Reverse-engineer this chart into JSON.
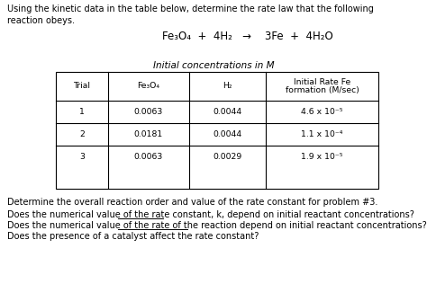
{
  "title_line1": "Using the kinetic data in the table below, determine the rate law that the following",
  "title_line2": "reaction obeys.",
  "equation": "Fe₃O₄  +  4H₂   →    3Fe  +  4H₂O",
  "table_title": "Initial concentrations in M",
  "col_headers_row1": [
    "Trial",
    "Fe₃O₄",
    "H₂",
    "Initial Rate Fe"
  ],
  "col_headers_row2": [
    "",
    "",
    "",
    "formation (M/sec)"
  ],
  "rows": [
    [
      "1",
      "0.0063",
      "0.0044",
      "4.6 x 10⁻⁵"
    ],
    [
      "2",
      "0.0181",
      "0.0044",
      "1.1 x 10⁻⁴"
    ],
    [
      "3",
      "0.0063",
      "0.0029",
      "1.9 x 10⁻⁵"
    ]
  ],
  "footer_lines": [
    "Determine the overall reaction order and value of the rate constant for problem #3.",
    "Does the numerical value of the rate constant, k, depend on initial reactant concentrations?",
    "Does the numerical value of the rate of the reaction depend on initial reactant concentrations?",
    "Does the presence of a catalyst affect the rate constant?"
  ],
  "bg_color": "#ffffff",
  "text_color": "#000000",
  "font_size": 7.0
}
